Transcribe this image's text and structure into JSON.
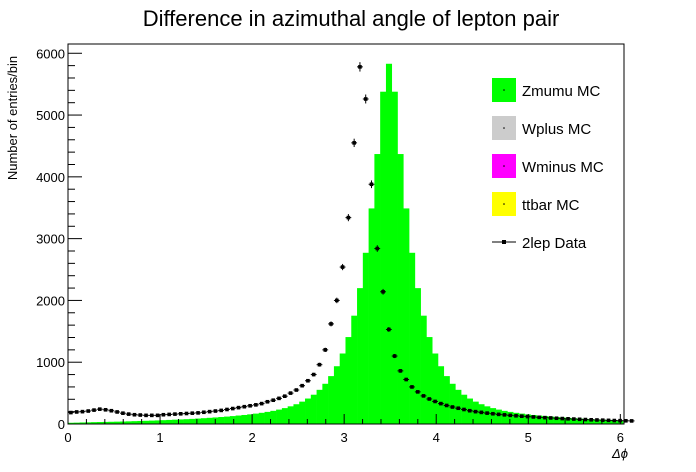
{
  "chart_data": {
    "type": "bar",
    "title": "Difference in azimuthal angle of lepton pair",
    "xlabel": "Δϕ",
    "ylabel": "Number of entries/bin",
    "xlim": [
      0,
      6.04
    ],
    "ylim": [
      0,
      6150
    ],
    "x_ticks": [
      "0",
      "1",
      "2",
      "3",
      "4",
      "5",
      "6"
    ],
    "y_ticks": [
      "0",
      "1000",
      "2000",
      "3000",
      "4000",
      "5000",
      "6000"
    ],
    "legend_position": "top-right",
    "grid": false,
    "bin_width": 0.0628,
    "series": [
      {
        "name": "Zmumu MC",
        "kind": "stacked-bar",
        "color": "#00ff00",
        "values": [
          20,
          22,
          25,
          27,
          30,
          32,
          34,
          36,
          38,
          40,
          43,
          46,
          49,
          52,
          55,
          58,
          62,
          66,
          70,
          74,
          78,
          83,
          88,
          94,
          100,
          106,
          113,
          120,
          128,
          137,
          146,
          156,
          168,
          181,
          196,
          213,
          233,
          257,
          286,
          320,
          362,
          412,
          474,
          553,
          651,
          775,
          935,
          1141,
          1407,
          1753,
          2199,
          2771,
          3489,
          4369,
          5378,
          5830,
          5378,
          4369,
          3489,
          2771,
          2199,
          1753,
          1407,
          1141,
          935,
          775,
          651,
          553,
          474,
          412,
          362,
          320,
          286,
          257,
          233,
          213,
          196,
          181,
          168,
          156,
          146,
          137,
          128,
          120,
          113,
          106,
          100,
          94,
          88,
          83,
          78,
          74,
          70,
          66,
          62,
          58
        ]
      },
      {
        "name": "Wplus MC",
        "kind": "stacked-bar",
        "color": "#cccccc",
        "values": []
      },
      {
        "name": "Wminus MC",
        "kind": "stacked-bar",
        "color": "#ff00ff",
        "values": []
      },
      {
        "name": "ttbar MC",
        "kind": "stacked-bar",
        "color": "#ffff00",
        "values": []
      },
      {
        "name": "2lep Data",
        "kind": "points",
        "color": "#000000",
        "values": [
          185,
          195,
          200,
          210,
          225,
          240,
          230,
          215,
          195,
          175,
          160,
          150,
          145,
          140,
          140,
          140,
          150,
          155,
          160,
          165,
          170,
          175,
          180,
          190,
          200,
          210,
          220,
          235,
          250,
          265,
          280,
          295,
          310,
          330,
          360,
          385,
          415,
          450,
          500,
          550,
          620,
          700,
          800,
          960,
          1200,
          1620,
          2000,
          2540,
          3340,
          4550,
          5780,
          5260,
          3880,
          2840,
          2140,
          1530,
          1100,
          860,
          720,
          600,
          520,
          455,
          405,
          365,
          330,
          300,
          275,
          255,
          235,
          215,
          200,
          188,
          176,
          166,
          156,
          148,
          140,
          133,
          126,
          120,
          114,
          108,
          103,
          98,
          93,
          88,
          84,
          80,
          76,
          72,
          68,
          65,
          62,
          59,
          56,
          54,
          52,
          50
        ]
      }
    ]
  }
}
